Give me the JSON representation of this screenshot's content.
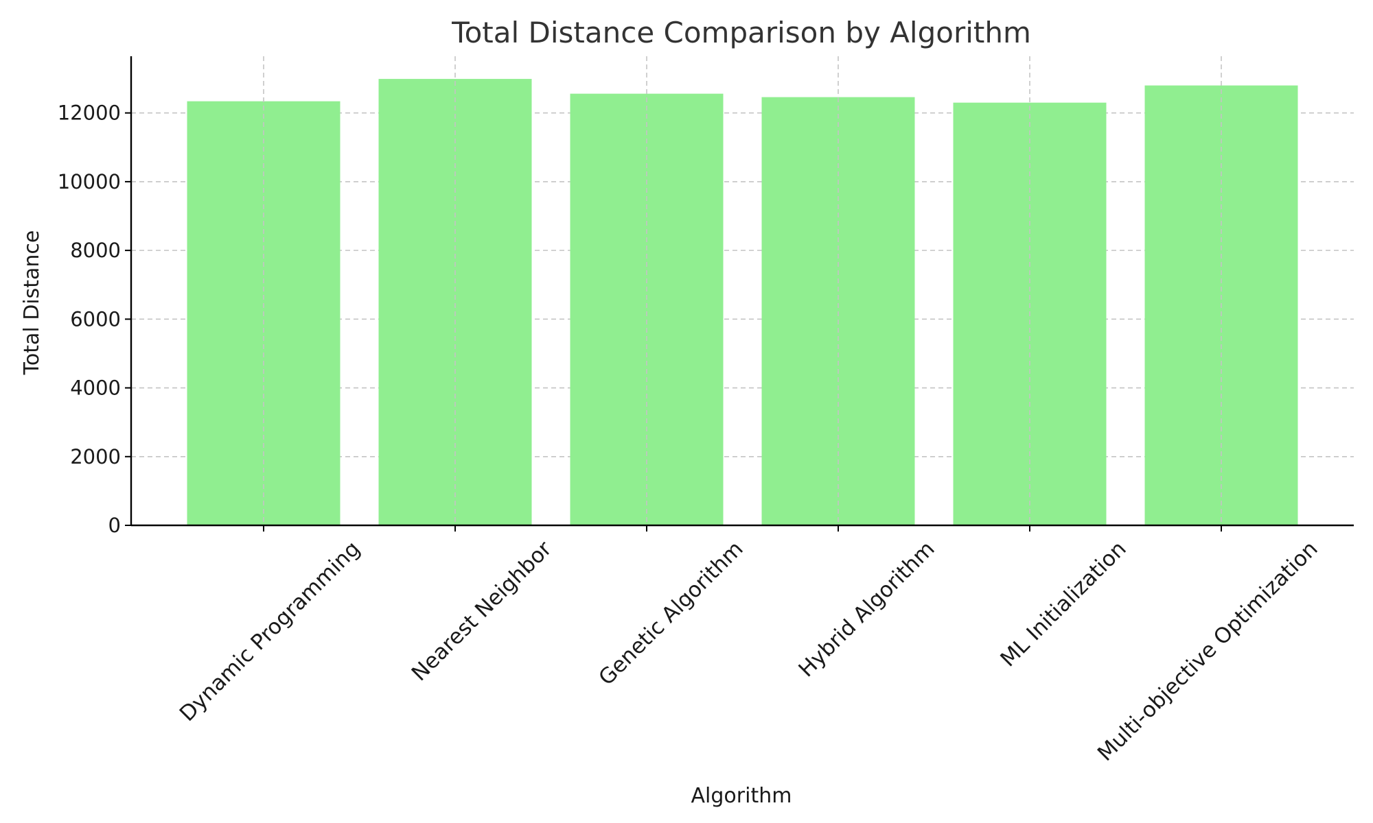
{
  "chart_data": {
    "type": "bar",
    "title": "Total Distance Comparison by Algorithm",
    "xlabel": "Algorithm",
    "ylabel": "Total Distance",
    "categories": [
      "Dynamic Programming",
      "Nearest Neighbor",
      "Genetic Algorithm",
      "Hybrid Algorithm",
      "ML Initialization",
      "Multi-objective Optimization"
    ],
    "values": [
      12340,
      12990,
      12560,
      12460,
      12300,
      12800
    ],
    "ylim": [
      0,
      13650
    ],
    "yticks": [
      0,
      2000,
      4000,
      6000,
      8000,
      10000,
      12000
    ],
    "grid": true,
    "bar_color": "#90EE90"
  }
}
